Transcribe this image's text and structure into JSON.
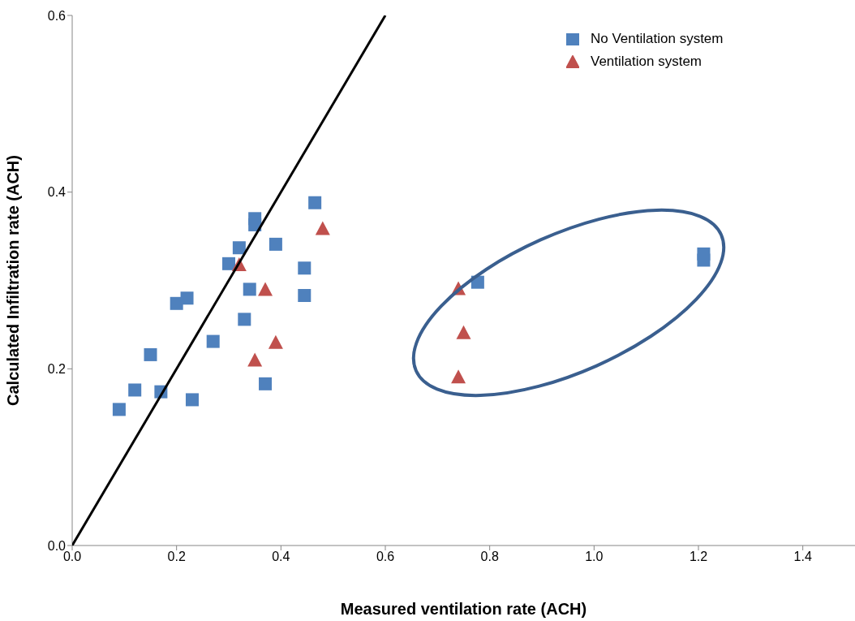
{
  "chart_data": {
    "type": "scatter",
    "xlabel": "Measured  ventilation rate (ACH)",
    "ylabel": "Calculated Infiltration rate (ACH)",
    "xlim": [
      0,
      1.5
    ],
    "ylim": [
      0,
      0.6
    ],
    "xticks": [
      {
        "value": 0,
        "label": "0.0"
      },
      0.2,
      0.4,
      0.6,
      0.8,
      {
        "value": 1,
        "label": "1.0"
      },
      1.2,
      1.4
    ],
    "yticks": [
      {
        "value": 0,
        "label": "0.0"
      },
      0.2,
      0.4,
      0.6
    ],
    "grid": false,
    "legend": "top right",
    "series": [
      {
        "name": "No Ventilation system",
        "color": "#4f81bd",
        "marker": "square",
        "x": [
          0.09,
          0.12,
          0.15,
          0.17,
          0.2,
          0.22,
          0.23,
          0.27,
          0.3,
          0.32,
          0.33,
          0.34,
          0.35,
          0.35,
          0.39,
          0.37,
          0.445,
          0.445,
          0.465,
          0.777,
          1.21,
          1.21
        ],
        "values": [
          0.154,
          0.176,
          0.216,
          0.174,
          0.274,
          0.28,
          0.165,
          0.231,
          0.319,
          0.337,
          0.256,
          0.29,
          0.37,
          0.363,
          0.341,
          0.183,
          0.314,
          0.283,
          0.388,
          0.298,
          0.33,
          0.323
        ]
      },
      {
        "name": "Ventilation system",
        "color": "#c0504d",
        "marker": "triangle",
        "x": [
          0.32,
          0.37,
          0.48,
          0.39,
          0.35,
          0.74,
          0.75,
          0.74
        ],
        "values": [
          0.317,
          0.289,
          0.358,
          0.229,
          0.209,
          0.29,
          0.24,
          0.19
        ]
      },
      {
        "type": "line",
        "color": "#000000",
        "marker": "none",
        "x": [
          0,
          0.6
        ],
        "values": [
          0,
          0.6
        ]
      }
    ]
  }
}
